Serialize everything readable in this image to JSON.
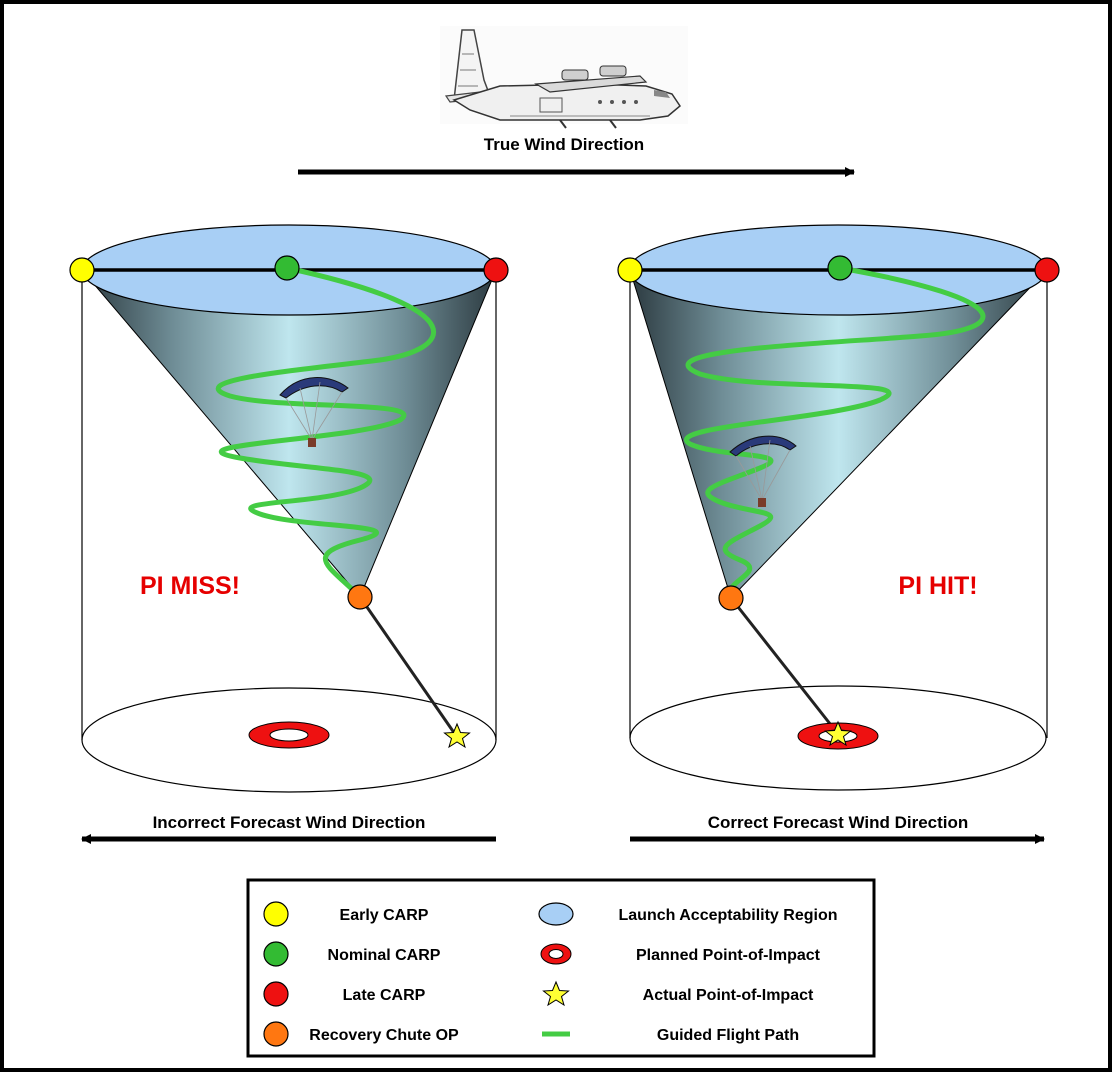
{
  "top": {
    "wind_label": "True Wind Direction"
  },
  "left_panel": {
    "status": "PI MISS!",
    "wind_label": "Incorrect Forecast Wind Direction"
  },
  "right_panel": {
    "status": "PI HIT!",
    "wind_label": "Correct Forecast Wind Direction"
  },
  "legend": {
    "items": [
      {
        "icon": "yellow-circle-icon",
        "label": "Early CARP",
        "color": "#ffff00"
      },
      {
        "icon": "green-circle-icon",
        "label": "Nominal CARP",
        "color": "#33bb33"
      },
      {
        "icon": "red-circle-icon",
        "label": "Late CARP",
        "color": "#ee1111"
      },
      {
        "icon": "orange-circle-icon",
        "label": "Recovery Chute OP",
        "color": "#ff7711"
      },
      {
        "icon": "blue-ellipse-icon",
        "label": "Launch Acceptability Region",
        "color": "#a8cff5"
      },
      {
        "icon": "red-ring-icon",
        "label": "Planned Point-of-Impact",
        "color": "#ee1111"
      },
      {
        "icon": "star-icon",
        "label": "Actual Point-of-Impact",
        "color": "#ffff33"
      },
      {
        "icon": "green-line-icon",
        "label": "Guided Flight Path",
        "color": "#44cc44"
      }
    ]
  },
  "colors": {
    "highlight_text": "#e60000",
    "flight_path": "#44cc44",
    "launch_region": "#a8cff5"
  }
}
